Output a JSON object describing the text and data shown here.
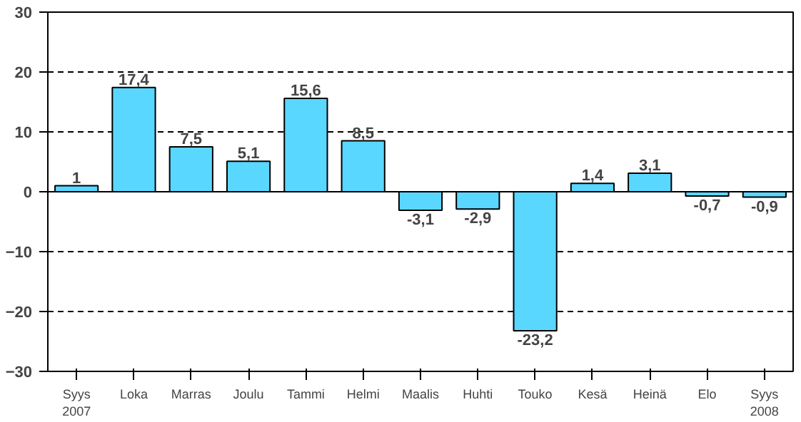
{
  "chart_data": {
    "type": "bar",
    "categories": [
      "Syys\n2007",
      "Loka",
      "Marras",
      "Joulu",
      "Tammi",
      "Helmi",
      "Maalis",
      "Huhti",
      "Touko",
      "Kesä",
      "Heinä",
      "Elo",
      "Syys\n2008"
    ],
    "values": [
      1,
      17.4,
      7.5,
      5.1,
      15.6,
      8.5,
      -3.1,
      -2.9,
      -23.2,
      1.4,
      3.1,
      -0.7,
      -0.9
    ],
    "value_labels": [
      "1",
      "17,4",
      "7,5",
      "5,1",
      "15,6",
      "8,5",
      "-3,1",
      "-2,9",
      "-23,2",
      "1,4",
      "3,1",
      "-0,7",
      "-0,9"
    ],
    "color": "#5ad7ff",
    "ylim": [
      -30,
      30
    ],
    "yticks": [
      -30,
      -20,
      -10,
      0,
      10,
      20,
      30
    ],
    "grid": "y"
  }
}
